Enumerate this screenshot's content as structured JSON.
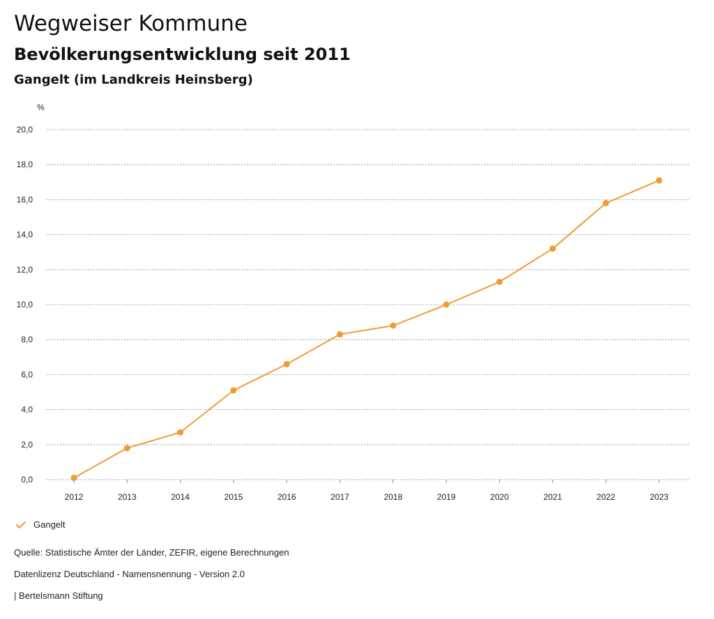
{
  "header": {
    "title": "Wegweiser Kommune",
    "subtitle": "Bevölkerungsentwicklung seit 2011",
    "region": "Gangelt (im Landkreis Heinsberg)"
  },
  "chart_data": {
    "type": "line",
    "title": "Bevölkerungsentwicklung seit 2011",
    "ylabel": "%",
    "xlabel": "",
    "ylim": [
      0,
      20
    ],
    "yticks": [
      0,
      2,
      4,
      6,
      8,
      10,
      12,
      14,
      16,
      18,
      20
    ],
    "ytick_labels": [
      "0,0",
      "2,0",
      "4,0",
      "6,0",
      "8,0",
      "10,0",
      "12,0",
      "14,0",
      "16,0",
      "18,0",
      "20,0"
    ],
    "x": [
      "2012",
      "2013",
      "2014",
      "2015",
      "2016",
      "2017",
      "2018",
      "2019",
      "2020",
      "2021",
      "2022",
      "2023"
    ],
    "grid": true,
    "legend_position": "bottom-left",
    "series": [
      {
        "name": "Gangelt",
        "color": "#f09a34",
        "values": [
          0.1,
          1.8,
          2.7,
          5.1,
          6.6,
          8.3,
          8.8,
          10.0,
          11.3,
          13.2,
          15.8,
          17.1
        ]
      }
    ]
  },
  "legend": {
    "label": "Gangelt",
    "icon": "check-icon"
  },
  "footer": {
    "source": "Quelle: Statistische Ämter der Länder, ZEFIR, eigene Berechnungen",
    "license": "Datenlizenz Deutschland - Namensnennung - Version 2.0",
    "publisher": "| Bertelsmann Stiftung"
  }
}
